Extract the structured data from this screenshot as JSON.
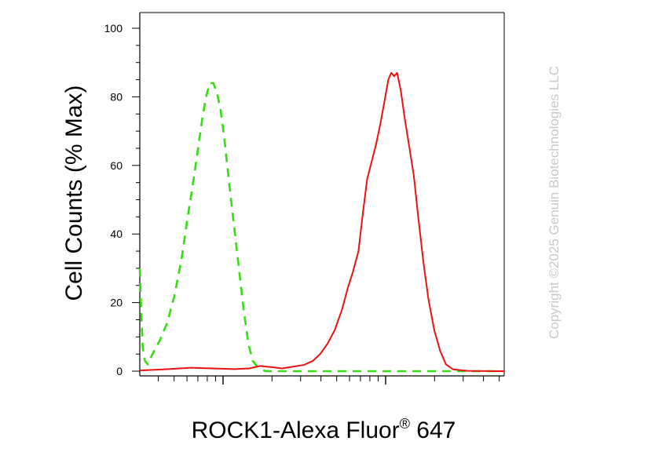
{
  "chart_data": {
    "type": "line",
    "ylabel": "Cell Counts (% Max)",
    "xlabel": "ROCK1-Alexa Fluor",
    "xlabel_superscript": "®",
    "xlabel_suffix": " 647",
    "copyright": "Copyright ©2025 Genuin Biotechnologies LLC",
    "ylim": [
      0,
      105
    ],
    "xlim": [
      0,
      1
    ],
    "x_scale": "log",
    "grid": false,
    "legend": "none",
    "y_ticks": [
      0,
      20,
      40,
      60,
      80,
      100
    ],
    "series": [
      {
        "style": "dashed",
        "color": "#33dd11",
        "points": [
          [
            0.0,
            30
          ],
          [
            0.003,
            20
          ],
          [
            0.008,
            7
          ],
          [
            0.014,
            3
          ],
          [
            0.022,
            2
          ],
          [
            0.035,
            5
          ],
          [
            0.055,
            9
          ],
          [
            0.075,
            14
          ],
          [
            0.095,
            22
          ],
          [
            0.115,
            33
          ],
          [
            0.13,
            44
          ],
          [
            0.145,
            54
          ],
          [
            0.16,
            65
          ],
          [
            0.172,
            74
          ],
          [
            0.182,
            80
          ],
          [
            0.192,
            84
          ],
          [
            0.202,
            84
          ],
          [
            0.212,
            81
          ],
          [
            0.222,
            76
          ],
          [
            0.232,
            68
          ],
          [
            0.245,
            55
          ],
          [
            0.258,
            43
          ],
          [
            0.272,
            30
          ],
          [
            0.285,
            18
          ],
          [
            0.298,
            8
          ],
          [
            0.31,
            3
          ],
          [
            0.325,
            1
          ],
          [
            0.345,
            0
          ],
          [
            0.4,
            0
          ],
          [
            0.5,
            0
          ],
          [
            0.6,
            0
          ],
          [
            0.8,
            0
          ],
          [
            1.0,
            0
          ]
        ]
      },
      {
        "style": "solid",
        "color": "#ee1111",
        "points": [
          [
            0.0,
            0.2
          ],
          [
            0.08,
            0.6
          ],
          [
            0.14,
            1.0
          ],
          [
            0.2,
            0.8
          ],
          [
            0.26,
            0.6
          ],
          [
            0.3,
            0.8
          ],
          [
            0.33,
            1.5
          ],
          [
            0.36,
            1.2
          ],
          [
            0.39,
            0.8
          ],
          [
            0.42,
            1.3
          ],
          [
            0.45,
            1.8
          ],
          [
            0.475,
            3
          ],
          [
            0.495,
            5
          ],
          [
            0.515,
            8
          ],
          [
            0.535,
            12
          ],
          [
            0.555,
            18
          ],
          [
            0.57,
            24
          ],
          [
            0.585,
            29
          ],
          [
            0.6,
            35
          ],
          [
            0.612,
            46
          ],
          [
            0.624,
            56
          ],
          [
            0.636,
            61
          ],
          [
            0.648,
            66
          ],
          [
            0.66,
            72
          ],
          [
            0.672,
            79
          ],
          [
            0.682,
            85
          ],
          [
            0.69,
            87
          ],
          [
            0.698,
            86
          ],
          [
            0.706,
            87
          ],
          [
            0.716,
            82
          ],
          [
            0.728,
            73
          ],
          [
            0.74,
            65
          ],
          [
            0.752,
            57
          ],
          [
            0.764,
            45
          ],
          [
            0.778,
            32
          ],
          [
            0.792,
            21
          ],
          [
            0.808,
            12
          ],
          [
            0.824,
            6
          ],
          [
            0.84,
            2
          ],
          [
            0.86,
            0.5
          ],
          [
            0.9,
            0.1
          ],
          [
            1.0,
            0
          ]
        ]
      }
    ]
  }
}
